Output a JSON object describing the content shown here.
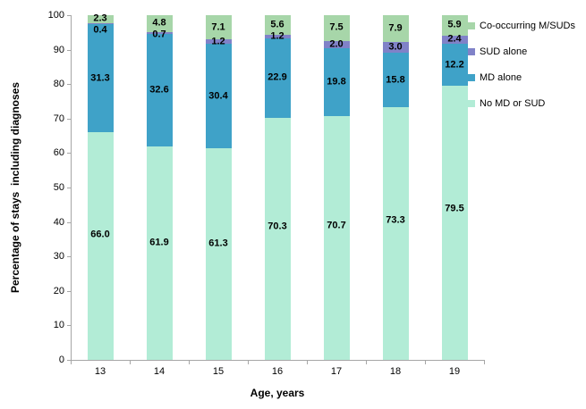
{
  "chart_data": {
    "type": "bar",
    "stacked": true,
    "orientation": "vertical",
    "title": "",
    "xlabel": "Age, years",
    "ylabel": "Percentage of stays  including diagnoses",
    "categories": [
      "13",
      "14",
      "15",
      "16",
      "17",
      "18",
      "19"
    ],
    "series": [
      {
        "name": "No MD or SUD",
        "color": "#b2ecd6",
        "values": [
          66.0,
          61.9,
          61.3,
          70.3,
          70.7,
          73.3,
          79.5
        ]
      },
      {
        "name": "MD alone",
        "color": "#3fa2c8",
        "values": [
          31.3,
          32.6,
          30.4,
          22.9,
          19.8,
          15.8,
          12.2
        ]
      },
      {
        "name": "SUD alone",
        "color": "#8082c8",
        "values": [
          0.4,
          0.7,
          1.2,
          1.2,
          2.0,
          3.0,
          2.4
        ]
      },
      {
        "name": "Co-occurring M/SUDs",
        "color": "#a7d6a9",
        "values": [
          2.3,
          4.8,
          7.1,
          5.6,
          7.5,
          7.9,
          5.9
        ]
      }
    ],
    "ylim": [
      0,
      100
    ],
    "ytick_step": 10,
    "y_tick_labels": [
      "0",
      "10",
      "20",
      "30",
      "40",
      "50",
      "60",
      "70",
      "80",
      "90",
      "100"
    ],
    "grid": false,
    "data_labels": true,
    "label_decimals": 1,
    "legend_position": "right",
    "legend_order": [
      "Co-occurring M/SUDs",
      "SUD alone",
      "MD alone",
      "No MD or SUD"
    ],
    "axis_color": "#a6a6a6"
  }
}
